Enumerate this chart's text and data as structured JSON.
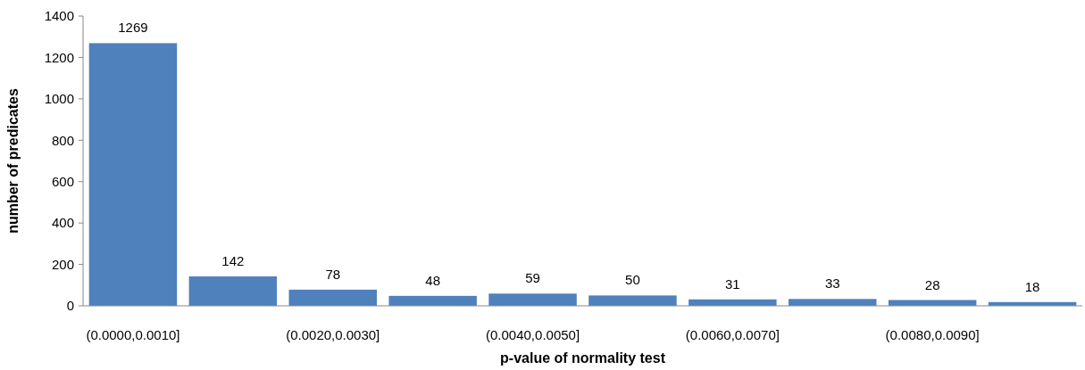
{
  "chart_data": {
    "type": "bar",
    "xlabel": "p-value  of  normality test",
    "ylabel": "number of predicates",
    "categories": [
      "(0.0000,0.0010]",
      null,
      "(0.0020,0.0030]",
      null,
      "(0.0040,0.0050]",
      null,
      "(0.0060,0.0070]",
      null,
      "(0.0080,0.0090]",
      null
    ],
    "values": [
      1269,
      142,
      78,
      48,
      59,
      50,
      31,
      33,
      28,
      18
    ],
    "color": "#4f81bd",
    "ylim": [
      0,
      1400
    ],
    "yticks": [
      0,
      200,
      400,
      600,
      800,
      1000,
      1200,
      1400
    ],
    "data_labels": true,
    "grid": false
  }
}
